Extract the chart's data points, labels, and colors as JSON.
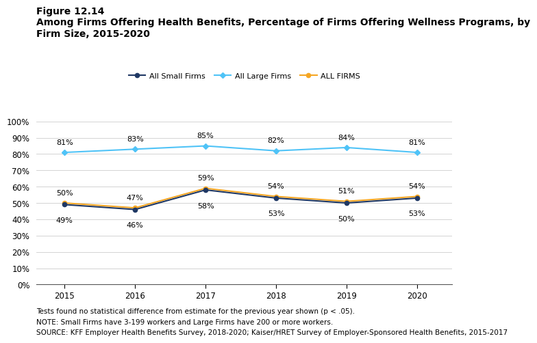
{
  "years": [
    2015,
    2016,
    2017,
    2018,
    2019,
    2020
  ],
  "small_firms": [
    49,
    46,
    58,
    53,
    50,
    53
  ],
  "large_firms": [
    81,
    83,
    85,
    82,
    84,
    81
  ],
  "all_firms": [
    50,
    47,
    59,
    54,
    51,
    54
  ],
  "small_color": "#1f3864",
  "large_color": "#4fc3f7",
  "all_color": "#f5a623",
  "small_label": "All Small Firms",
  "large_label": "All Large Firms",
  "all_label": "ALL FIRMS",
  "figure_label": "Figure 12.14",
  "title_line1": "Among Firms Offering Health Benefits, Percentage of Firms Offering Wellness Programs, by",
  "title_line2": "Firm Size, 2015-2020",
  "ylim": [
    0,
    110
  ],
  "yticks": [
    0,
    10,
    20,
    30,
    40,
    50,
    60,
    70,
    80,
    90,
    100
  ],
  "footnote1": "Tests found no statistical difference from estimate for the previous year shown (p < .05).",
  "footnote2": "NOTE: Small Firms have 3-199 workers and Large Firms have 200 or more workers.",
  "footnote3": "SOURCE: KFF Employer Health Benefits Survey, 2018-2020; Kaiser/HRET Survey of Employer-Sponsored Health Benefits, 2015-2017",
  "label_fontsize": 8,
  "tick_fontsize": 8.5,
  "legend_fontsize": 8,
  "title_fontsize": 10,
  "footnote_fontsize": 7.5
}
